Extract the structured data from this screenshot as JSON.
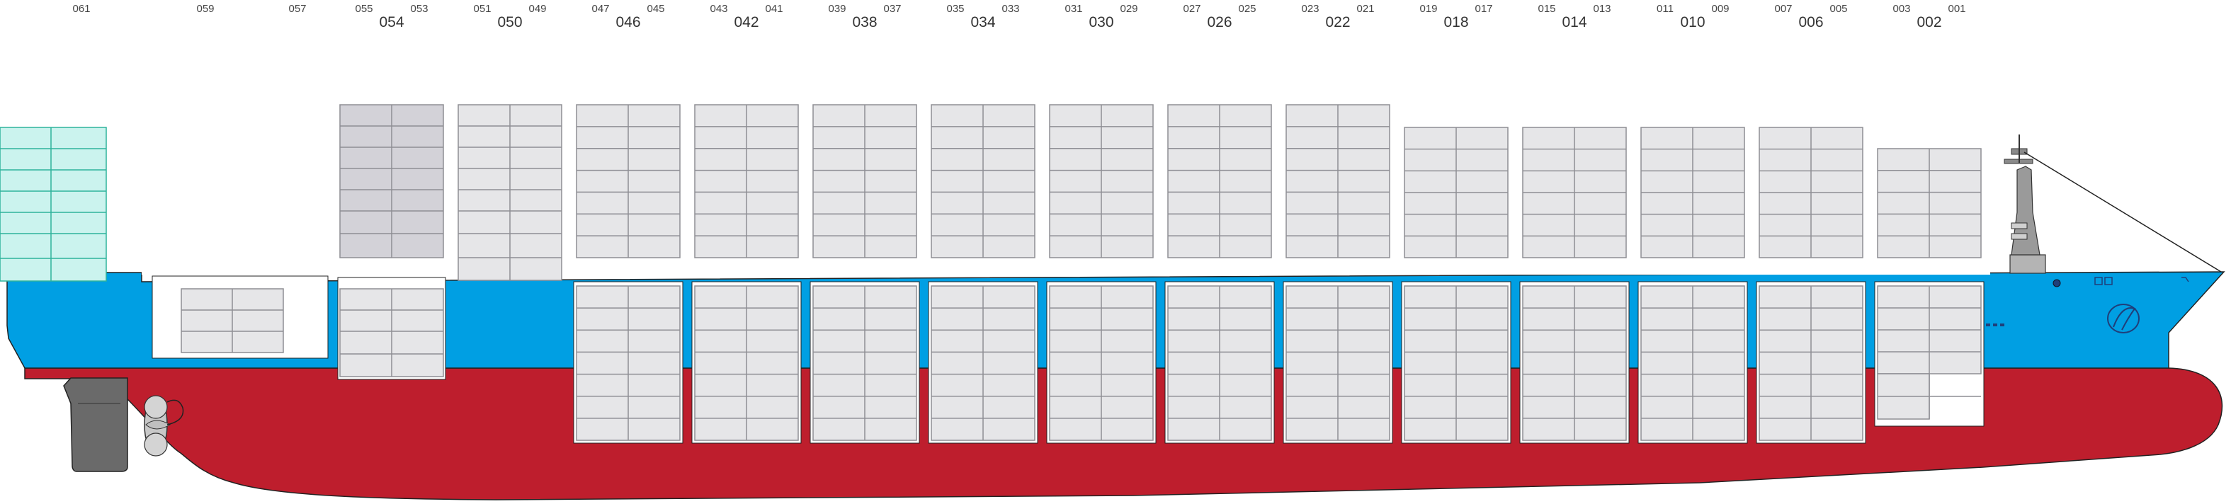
{
  "diagram": {
    "labels": {
      "row_top": [
        "061",
        "059",
        "057",
        "055",
        "053",
        "051",
        "049",
        "047",
        "045",
        "043",
        "041",
        "039",
        "037",
        "035",
        "033",
        "031",
        "029",
        "027",
        "025",
        "023",
        "021",
        "019",
        "017",
        "015",
        "013",
        "011",
        "009",
        "007",
        "005",
        "003",
        "001"
      ],
      "row_bottom": [
        "054",
        "050",
        "046",
        "042",
        "038",
        "034",
        "030",
        "026",
        "022",
        "018",
        "014",
        "010",
        "006",
        "002"
      ]
    },
    "colors": {
      "hull_lower": "#be1e2d",
      "hull_upper": "#009fe3",
      "container_fill": "#e6e6e8",
      "container_stroke": "#8e8e94",
      "container_dark": "#d3d2d8",
      "reefer_fill": "#cbf3ee",
      "reefer_stroke": "#2eb39c",
      "propeller": "#c8c8c8",
      "rudder": "#6a6a6a",
      "mast": "#8a8a8a"
    },
    "icons": [
      "propeller-icon",
      "rudder-icon",
      "mast-icon",
      "anchor-icon",
      "bow-thruster-icon",
      "bulbous-bow-icon"
    ]
  }
}
